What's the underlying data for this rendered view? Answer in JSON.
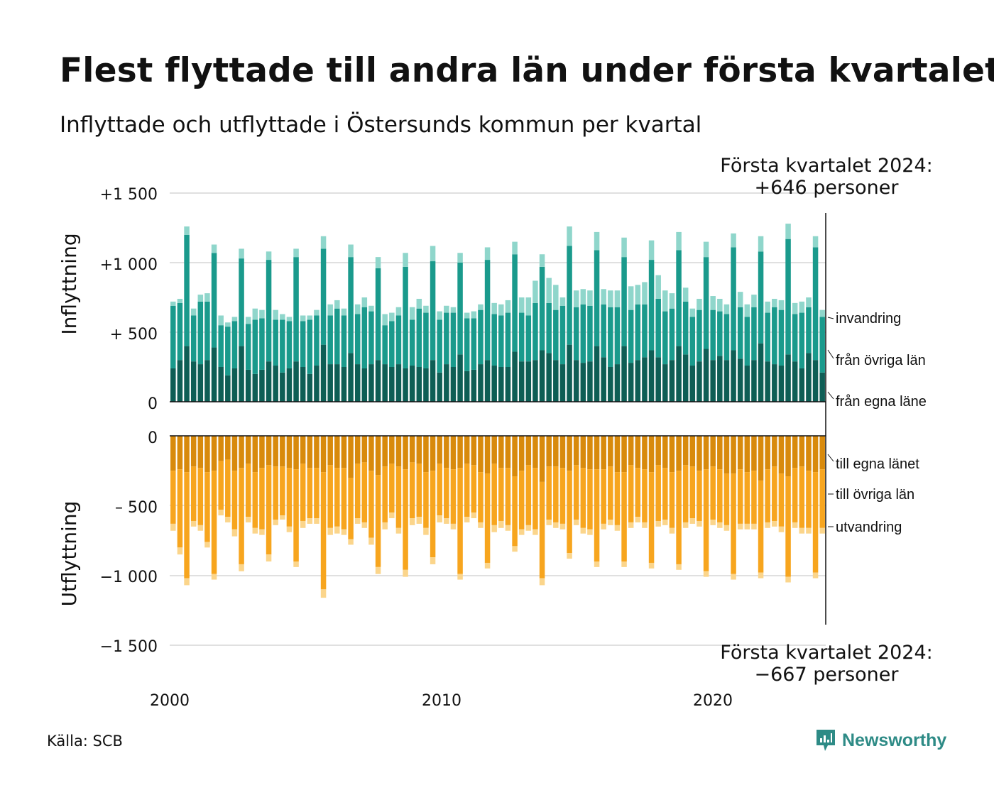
{
  "title": "Flest flyttade till andra län under första kvartalet",
  "subtitle": "Inflyttade och utflyttade i Östersunds kommun per kvartal",
  "source": "Källa: SCB",
  "brand": "Newsworthy",
  "brand_icon": "newsworthy-logo-icon",
  "callout_top": {
    "line1": "Första kvartalet 2024:",
    "line2": "+646 personer"
  },
  "callout_bottom": {
    "line1": "Första kvartalet 2024:",
    "line2": "−667 personer"
  },
  "axis_titles": {
    "top": "Inflyttning",
    "bottom": "Utflyttning"
  },
  "colors": {
    "in_own": "#0e5e55",
    "in_other": "#1a9a8c",
    "in_immig": "#8fd6cb",
    "out_own": "#d88a0c",
    "out_other": "#f7a51e",
    "out_emig": "#fbd58b",
    "grid": "#e0e0e0"
  },
  "chart_data": [
    {
      "type": "bar",
      "stacked": true,
      "title": "",
      "ylabel": "Inflyttning",
      "ylim": [
        0,
        1500
      ],
      "yticks": [
        0,
        500,
        1000,
        1500
      ],
      "yticklabels": [
        "0",
        "+  500",
        "+1 000",
        "+1 500"
      ],
      "xticks": [
        "2000",
        "2010",
        "2020"
      ],
      "x_start": "2000 Q1",
      "x_end": "2024 Q1",
      "series": [
        {
          "name": "från egna länet",
          "label": "från egna läne",
          "values": [
            240,
            300,
            400,
            290,
            270,
            300,
            390,
            250,
            190,
            240,
            400,
            230,
            200,
            230,
            290,
            260,
            210,
            240,
            290,
            250,
            200,
            260,
            410,
            270,
            270,
            250,
            350,
            270,
            240,
            270,
            300,
            270,
            250,
            270,
            240,
            260,
            250,
            240,
            300,
            210,
            270,
            250,
            340,
            220,
            230,
            270,
            300,
            260,
            250,
            250,
            360,
            290,
            290,
            300,
            370,
            350,
            300,
            270,
            410,
            300,
            280,
            290,
            400,
            320,
            250,
            270,
            400,
            280,
            300,
            320,
            370,
            320,
            270,
            300,
            400,
            340,
            260,
            290,
            380,
            300,
            330,
            300,
            370,
            310,
            260,
            300,
            420,
            290,
            270,
            260,
            340,
            290,
            240,
            350,
            300,
            210
          ]
        },
        {
          "name": "från övriga län",
          "label": "från övriga län",
          "values": [
            450,
            410,
            800,
            330,
            450,
            420,
            680,
            300,
            350,
            340,
            630,
            330,
            390,
            370,
            730,
            330,
            380,
            340,
            750,
            330,
            390,
            360,
            690,
            350,
            400,
            370,
            690,
            360,
            440,
            380,
            660,
            280,
            330,
            350,
            730,
            330,
            420,
            400,
            710,
            380,
            370,
            390,
            660,
            380,
            370,
            390,
            720,
            370,
            370,
            390,
            700,
            350,
            330,
            410,
            600,
            360,
            360,
            420,
            710,
            380,
            420,
            400,
            690,
            380,
            430,
            410,
            640,
            380,
            400,
            380,
            650,
            420,
            380,
            370,
            690,
            380,
            350,
            370,
            660,
            360,
            320,
            330,
            740,
            370,
            350,
            380,
            660,
            350,
            410,
            400,
            830,
            340,
            400,
            330,
            810,
            400
          ]
        },
        {
          "name": "invandring",
          "label": "invandring",
          "values": [
            30,
            30,
            60,
            50,
            50,
            60,
            60,
            70,
            30,
            30,
            70,
            50,
            80,
            60,
            60,
            70,
            40,
            30,
            60,
            40,
            30,
            40,
            90,
            80,
            60,
            50,
            90,
            70,
            70,
            40,
            80,
            80,
            60,
            60,
            100,
            90,
            70,
            50,
            110,
            60,
            50,
            40,
            70,
            40,
            50,
            40,
            90,
            80,
            80,
            90,
            90,
            110,
            130,
            160,
            90,
            180,
            180,
            60,
            140,
            120,
            110,
            110,
            130,
            110,
            120,
            120,
            140,
            170,
            140,
            160,
            140,
            170,
            150,
            110,
            130,
            100,
            60,
            80,
            110,
            100,
            90,
            70,
            100,
            110,
            90,
            90,
            110,
            80,
            60,
            70,
            110,
            80,
            80,
            70,
            80,
            50
          ]
        }
      ]
    },
    {
      "type": "bar",
      "stacked": true,
      "title": "",
      "ylabel": "Utflyttning",
      "ylim": [
        -1500,
        0
      ],
      "yticks": [
        0,
        -500,
        -1000,
        -1500
      ],
      "yticklabels": [
        "0",
        "–  500",
        "−1 000",
        "−1 500"
      ],
      "xticks": [
        "2000",
        "2010",
        "2020"
      ],
      "x_start": "2000 Q1",
      "x_end": "2024 Q1",
      "series": [
        {
          "name": "till egna länet",
          "label": "till egna länet",
          "values": [
            -250,
            -240,
            -260,
            -220,
            -230,
            -260,
            -250,
            -180,
            -170,
            -250,
            -230,
            -200,
            -260,
            -230,
            -210,
            -220,
            -220,
            -230,
            -240,
            -200,
            -230,
            -230,
            -260,
            -210,
            -230,
            -230,
            -300,
            -200,
            -190,
            -250,
            -280,
            -220,
            -200,
            -220,
            -240,
            -190,
            -200,
            -260,
            -250,
            -200,
            -230,
            -240,
            -230,
            -200,
            -210,
            -260,
            -270,
            -200,
            -230,
            -230,
            -290,
            -250,
            -210,
            -230,
            -330,
            -220,
            -220,
            -230,
            -250,
            -210,
            -230,
            -240,
            -240,
            -240,
            -220,
            -260,
            -260,
            -210,
            -230,
            -240,
            -260,
            -210,
            -230,
            -260,
            -250,
            -210,
            -220,
            -250,
            -240,
            -220,
            -240,
            -270,
            -270,
            -240,
            -260,
            -250,
            -320,
            -240,
            -220,
            -270,
            -290,
            -230,
            -220,
            -250,
            -260,
            -240
          ]
        },
        {
          "name": "till övriga län",
          "label": "till övriga län",
          "values": [
            -380,
            -560,
            -760,
            -390,
            -410,
            -500,
            -740,
            -350,
            -410,
            -420,
            -690,
            -380,
            -400,
            -440,
            -640,
            -380,
            -350,
            -420,
            -660,
            -410,
            -360,
            -360,
            -840,
            -450,
            -420,
            -440,
            -440,
            -390,
            -430,
            -480,
            -660,
            -400,
            -350,
            -440,
            -720,
            -400,
            -380,
            -400,
            -620,
            -370,
            -360,
            -390,
            -760,
            -380,
            -340,
            -360,
            -640,
            -440,
            -380,
            -410,
            -500,
            -420,
            -430,
            -440,
            -690,
            -380,
            -400,
            -400,
            -590,
            -390,
            -430,
            -430,
            -660,
            -390,
            -380,
            -380,
            -640,
            -410,
            -350,
            -380,
            -650,
            -400,
            -370,
            -400,
            -670,
            -410,
            -370,
            -360,
            -730,
            -380,
            -380,
            -370,
            -720,
            -390,
            -370,
            -380,
            -660,
            -380,
            -390,
            -380,
            -720,
            -390,
            -440,
            -410,
            -720,
            -420
          ]
        },
        {
          "name": "utvandring",
          "label": "utvandring",
          "values": [
            -50,
            -50,
            -50,
            -40,
            -40,
            -40,
            -40,
            -40,
            -40,
            -50,
            -50,
            -40,
            -40,
            -40,
            -50,
            -40,
            -30,
            -40,
            -40,
            -50,
            -40,
            -40,
            -60,
            -50,
            -50,
            -40,
            -40,
            -40,
            -40,
            -50,
            -50,
            -50,
            -40,
            -40,
            -50,
            -50,
            -50,
            -50,
            -50,
            -50,
            -40,
            -40,
            -40,
            -40,
            -40,
            -40,
            -40,
            -50,
            -50,
            -40,
            -40,
            -40,
            -40,
            -40,
            -50,
            -40,
            -40,
            -40,
            -40,
            -40,
            -40,
            -40,
            -40,
            -40,
            -40,
            -40,
            -40,
            -40,
            -40,
            -40,
            -40,
            -40,
            -40,
            -40,
            -40,
            -40,
            -40,
            -40,
            -40,
            -40,
            -40,
            -40,
            -40,
            -40,
            -40,
            -40,
            -40,
            -40,
            -40,
            -40,
            -40,
            -40,
            -40,
            -40,
            -40,
            -40
          ]
        }
      ]
    }
  ]
}
